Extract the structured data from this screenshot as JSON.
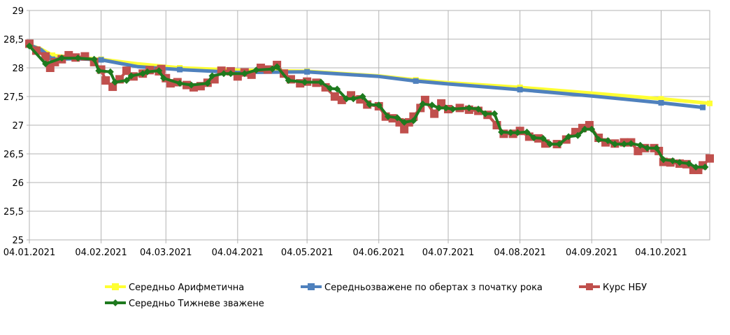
{
  "chart_data": {
    "type": "line",
    "title": "",
    "xlabel": "",
    "ylabel": "",
    "x_range": [
      "2021-01-04",
      "2021-10-25"
    ],
    "ylim": [
      25,
      29
    ],
    "y_ticks": [
      "25",
      "25,5",
      "26",
      "26,5",
      "27",
      "27,5",
      "28",
      "28,5",
      "29"
    ],
    "x_ticks": [
      {
        "date": "2021-01-04",
        "label": "04.01.2021"
      },
      {
        "date": "2021-02-04",
        "label": "04.02.2021"
      },
      {
        "date": "2021-03-04",
        "label": "04.03.2021"
      },
      {
        "date": "2021-04-04",
        "label": "04.04.2021"
      },
      {
        "date": "2021-05-04",
        "label": "04.05.2021"
      },
      {
        "date": "2021-06-04",
        "label": "04.06.2021"
      },
      {
        "date": "2021-07-04",
        "label": "04.07.2021"
      },
      {
        "date": "2021-08-04",
        "label": "04.08.2021"
      },
      {
        "date": "2021-09-04",
        "label": "04.09.2021"
      },
      {
        "date": "2021-10-04",
        "label": "04.10.2021"
      }
    ],
    "grid": true,
    "legend_position": "bottom",
    "series": [
      {
        "name": "Середньо Арифметична",
        "color": "#ffff33",
        "marker": "square",
        "points": [
          [
            "2021-01-04",
            28.4
          ],
          [
            "2021-01-09",
            28.33
          ],
          [
            "2021-01-14",
            28.22
          ],
          [
            "2021-01-24",
            28.18
          ],
          [
            "2021-02-04",
            28.15
          ],
          [
            "2021-02-20",
            28.07
          ],
          [
            "2021-03-10",
            28.0
          ],
          [
            "2021-04-04",
            27.96
          ],
          [
            "2021-05-04",
            27.94
          ],
          [
            "2021-06-04",
            27.86
          ],
          [
            "2021-06-20",
            27.79
          ],
          [
            "2021-07-04",
            27.74
          ],
          [
            "2021-08-04",
            27.66
          ],
          [
            "2021-09-04",
            27.56
          ],
          [
            "2021-10-04",
            27.46
          ],
          [
            "2021-10-25",
            27.38
          ]
        ]
      },
      {
        "name": "Середньозважене по обертах з початку рока",
        "color": "#4f81bd",
        "marker": "square",
        "points": [
          [
            "2021-01-04",
            28.4
          ],
          [
            "2021-01-09",
            28.32
          ],
          [
            "2021-01-14",
            28.15
          ],
          [
            "2021-01-24",
            28.16
          ],
          [
            "2021-02-04",
            28.14
          ],
          [
            "2021-02-20",
            28.02
          ],
          [
            "2021-03-10",
            27.97
          ],
          [
            "2021-04-04",
            27.92
          ],
          [
            "2021-05-04",
            27.93
          ],
          [
            "2021-06-04",
            27.85
          ],
          [
            "2021-06-20",
            27.77
          ],
          [
            "2021-07-04",
            27.72
          ],
          [
            "2021-08-04",
            27.62
          ],
          [
            "2021-09-04",
            27.51
          ],
          [
            "2021-10-04",
            27.39
          ],
          [
            "2021-10-22",
            27.31
          ]
        ]
      },
      {
        "name": "Курс НБУ",
        "color": "#c0504d",
        "marker": "square",
        "points": [
          [
            "2021-01-04",
            28.42
          ],
          [
            "2021-01-07",
            28.3
          ],
          [
            "2021-01-11",
            28.2
          ],
          [
            "2021-01-13",
            28.0
          ],
          [
            "2021-01-15",
            28.1
          ],
          [
            "2021-01-18",
            28.15
          ],
          [
            "2021-01-21",
            28.22
          ],
          [
            "2021-01-24",
            28.18
          ],
          [
            "2021-01-28",
            28.2
          ],
          [
            "2021-02-01",
            28.1
          ],
          [
            "2021-02-04",
            27.97
          ],
          [
            "2021-02-06",
            27.78
          ],
          [
            "2021-02-09",
            27.67
          ],
          [
            "2021-02-12",
            27.8
          ],
          [
            "2021-02-15",
            27.95
          ],
          [
            "2021-02-18",
            27.85
          ],
          [
            "2021-02-22",
            27.9
          ],
          [
            "2021-02-25",
            27.96
          ],
          [
            "2021-03-01",
            27.94
          ],
          [
            "2021-03-02",
            27.98
          ],
          [
            "2021-03-04",
            27.82
          ],
          [
            "2021-03-06",
            27.73
          ],
          [
            "2021-03-09",
            27.75
          ],
          [
            "2021-03-13",
            27.7
          ],
          [
            "2021-03-16",
            27.66
          ],
          [
            "2021-03-19",
            27.68
          ],
          [
            "2021-03-22",
            27.74
          ],
          [
            "2021-03-25",
            27.8
          ],
          [
            "2021-03-28",
            27.95
          ],
          [
            "2021-04-01",
            27.94
          ],
          [
            "2021-04-04",
            27.85
          ],
          [
            "2021-04-07",
            27.92
          ],
          [
            "2021-04-10",
            27.88
          ],
          [
            "2021-04-14",
            28.0
          ],
          [
            "2021-04-17",
            27.97
          ],
          [
            "2021-04-21",
            28.05
          ],
          [
            "2021-04-24",
            27.9
          ],
          [
            "2021-04-27",
            27.8
          ],
          [
            "2021-05-01",
            27.73
          ],
          [
            "2021-05-04",
            27.76
          ],
          [
            "2021-05-08",
            27.74
          ],
          [
            "2021-05-12",
            27.66
          ],
          [
            "2021-05-16",
            27.5
          ],
          [
            "2021-05-19",
            27.44
          ],
          [
            "2021-05-23",
            27.52
          ],
          [
            "2021-05-27",
            27.45
          ],
          [
            "2021-05-30",
            27.36
          ],
          [
            "2021-06-04",
            27.33
          ],
          [
            "2021-06-07",
            27.15
          ],
          [
            "2021-06-10",
            27.12
          ],
          [
            "2021-06-13",
            27.05
          ],
          [
            "2021-06-15",
            26.93
          ],
          [
            "2021-06-17",
            27.05
          ],
          [
            "2021-06-19",
            27.15
          ],
          [
            "2021-06-22",
            27.3
          ],
          [
            "2021-06-24",
            27.44
          ],
          [
            "2021-06-28",
            27.2
          ],
          [
            "2021-07-01",
            27.38
          ],
          [
            "2021-07-04",
            27.28
          ],
          [
            "2021-07-09",
            27.3
          ],
          [
            "2021-07-13",
            27.27
          ],
          [
            "2021-07-17",
            27.25
          ],
          [
            "2021-07-21",
            27.18
          ],
          [
            "2021-07-25",
            27.0
          ],
          [
            "2021-07-28",
            26.85
          ],
          [
            "2021-08-01",
            26.85
          ],
          [
            "2021-08-04",
            26.9
          ],
          [
            "2021-08-08",
            26.8
          ],
          [
            "2021-08-12",
            26.77
          ],
          [
            "2021-08-15",
            26.68
          ],
          [
            "2021-08-20",
            26.67
          ],
          [
            "2021-08-24",
            26.75
          ],
          [
            "2021-08-28",
            26.88
          ],
          [
            "2021-08-31",
            26.95
          ],
          [
            "2021-09-03",
            27.0
          ],
          [
            "2021-09-07",
            26.78
          ],
          [
            "2021-09-10",
            26.7
          ],
          [
            "2021-09-14",
            26.68
          ],
          [
            "2021-09-18",
            26.7
          ],
          [
            "2021-09-21",
            26.7
          ],
          [
            "2021-09-24",
            26.55
          ],
          [
            "2021-09-27",
            26.6
          ],
          [
            "2021-10-01",
            26.6
          ],
          [
            "2021-10-03",
            26.55
          ],
          [
            "2021-10-05",
            26.36
          ],
          [
            "2021-10-08",
            26.35
          ],
          [
            "2021-10-12",
            26.33
          ],
          [
            "2021-10-15",
            26.32
          ],
          [
            "2021-10-18",
            26.22
          ],
          [
            "2021-10-20",
            26.22
          ],
          [
            "2021-10-22",
            26.3
          ],
          [
            "2021-10-25",
            26.42
          ]
        ]
      },
      {
        "name": "Середньо Тижневе зважене",
        "color": "#1e7a1e",
        "marker": "diamond",
        "points": [
          [
            "2021-01-04",
            28.38
          ],
          [
            "2021-01-11",
            28.07
          ],
          [
            "2021-01-18",
            28.17
          ],
          [
            "2021-01-25",
            28.17
          ],
          [
            "2021-02-01",
            28.15
          ],
          [
            "2021-02-03",
            27.95
          ],
          [
            "2021-02-08",
            27.93
          ],
          [
            "2021-02-10",
            27.75
          ],
          [
            "2021-02-15",
            27.78
          ],
          [
            "2021-02-17",
            27.86
          ],
          [
            "2021-02-22",
            27.9
          ],
          [
            "2021-02-24",
            27.93
          ],
          [
            "2021-03-01",
            27.95
          ],
          [
            "2021-03-03",
            27.82
          ],
          [
            "2021-03-10",
            27.73
          ],
          [
            "2021-03-15",
            27.7
          ],
          [
            "2021-03-22",
            27.73
          ],
          [
            "2021-03-24",
            27.86
          ],
          [
            "2021-03-29",
            27.9
          ],
          [
            "2021-04-01",
            27.9
          ],
          [
            "2021-04-07",
            27.9
          ],
          [
            "2021-04-12",
            27.96
          ],
          [
            "2021-04-19",
            27.98
          ],
          [
            "2021-04-21",
            28.02
          ],
          [
            "2021-04-26",
            27.78
          ],
          [
            "2021-05-03",
            27.75
          ],
          [
            "2021-05-10",
            27.75
          ],
          [
            "2021-05-14",
            27.64
          ],
          [
            "2021-05-17",
            27.63
          ],
          [
            "2021-05-21",
            27.46
          ],
          [
            "2021-05-24",
            27.46
          ],
          [
            "2021-05-28",
            27.5
          ],
          [
            "2021-05-31",
            27.36
          ],
          [
            "2021-06-04",
            27.35
          ],
          [
            "2021-06-08",
            27.15
          ],
          [
            "2021-06-12",
            27.13
          ],
          [
            "2021-06-15",
            27.05
          ],
          [
            "2021-06-19",
            27.08
          ],
          [
            "2021-06-23",
            27.37
          ],
          [
            "2021-06-27",
            27.35
          ],
          [
            "2021-06-30",
            27.3
          ],
          [
            "2021-07-03",
            27.3
          ],
          [
            "2021-07-06",
            27.28
          ],
          [
            "2021-07-13",
            27.3
          ],
          [
            "2021-07-17",
            27.28
          ],
          [
            "2021-07-20",
            27.2
          ],
          [
            "2021-07-24",
            27.2
          ],
          [
            "2021-07-27",
            26.88
          ],
          [
            "2021-07-31",
            26.87
          ],
          [
            "2021-08-03",
            26.87
          ],
          [
            "2021-08-07",
            26.88
          ],
          [
            "2021-08-10",
            26.78
          ],
          [
            "2021-08-14",
            26.77
          ],
          [
            "2021-08-17",
            26.67
          ],
          [
            "2021-08-21",
            26.67
          ],
          [
            "2021-08-25",
            26.8
          ],
          [
            "2021-08-29",
            26.82
          ],
          [
            "2021-09-01",
            26.93
          ],
          [
            "2021-09-04",
            26.93
          ],
          [
            "2021-09-07",
            26.75
          ],
          [
            "2021-09-11",
            26.73
          ],
          [
            "2021-09-14",
            26.67
          ],
          [
            "2021-09-18",
            26.67
          ],
          [
            "2021-09-21",
            26.68
          ],
          [
            "2021-09-25",
            26.65
          ],
          [
            "2021-09-28",
            26.6
          ],
          [
            "2021-10-02",
            26.6
          ],
          [
            "2021-10-05",
            26.4
          ],
          [
            "2021-10-09",
            26.38
          ],
          [
            "2021-10-12",
            26.35
          ],
          [
            "2021-10-16",
            26.33
          ],
          [
            "2021-10-19",
            26.27
          ],
          [
            "2021-10-23",
            26.27
          ]
        ]
      }
    ]
  }
}
